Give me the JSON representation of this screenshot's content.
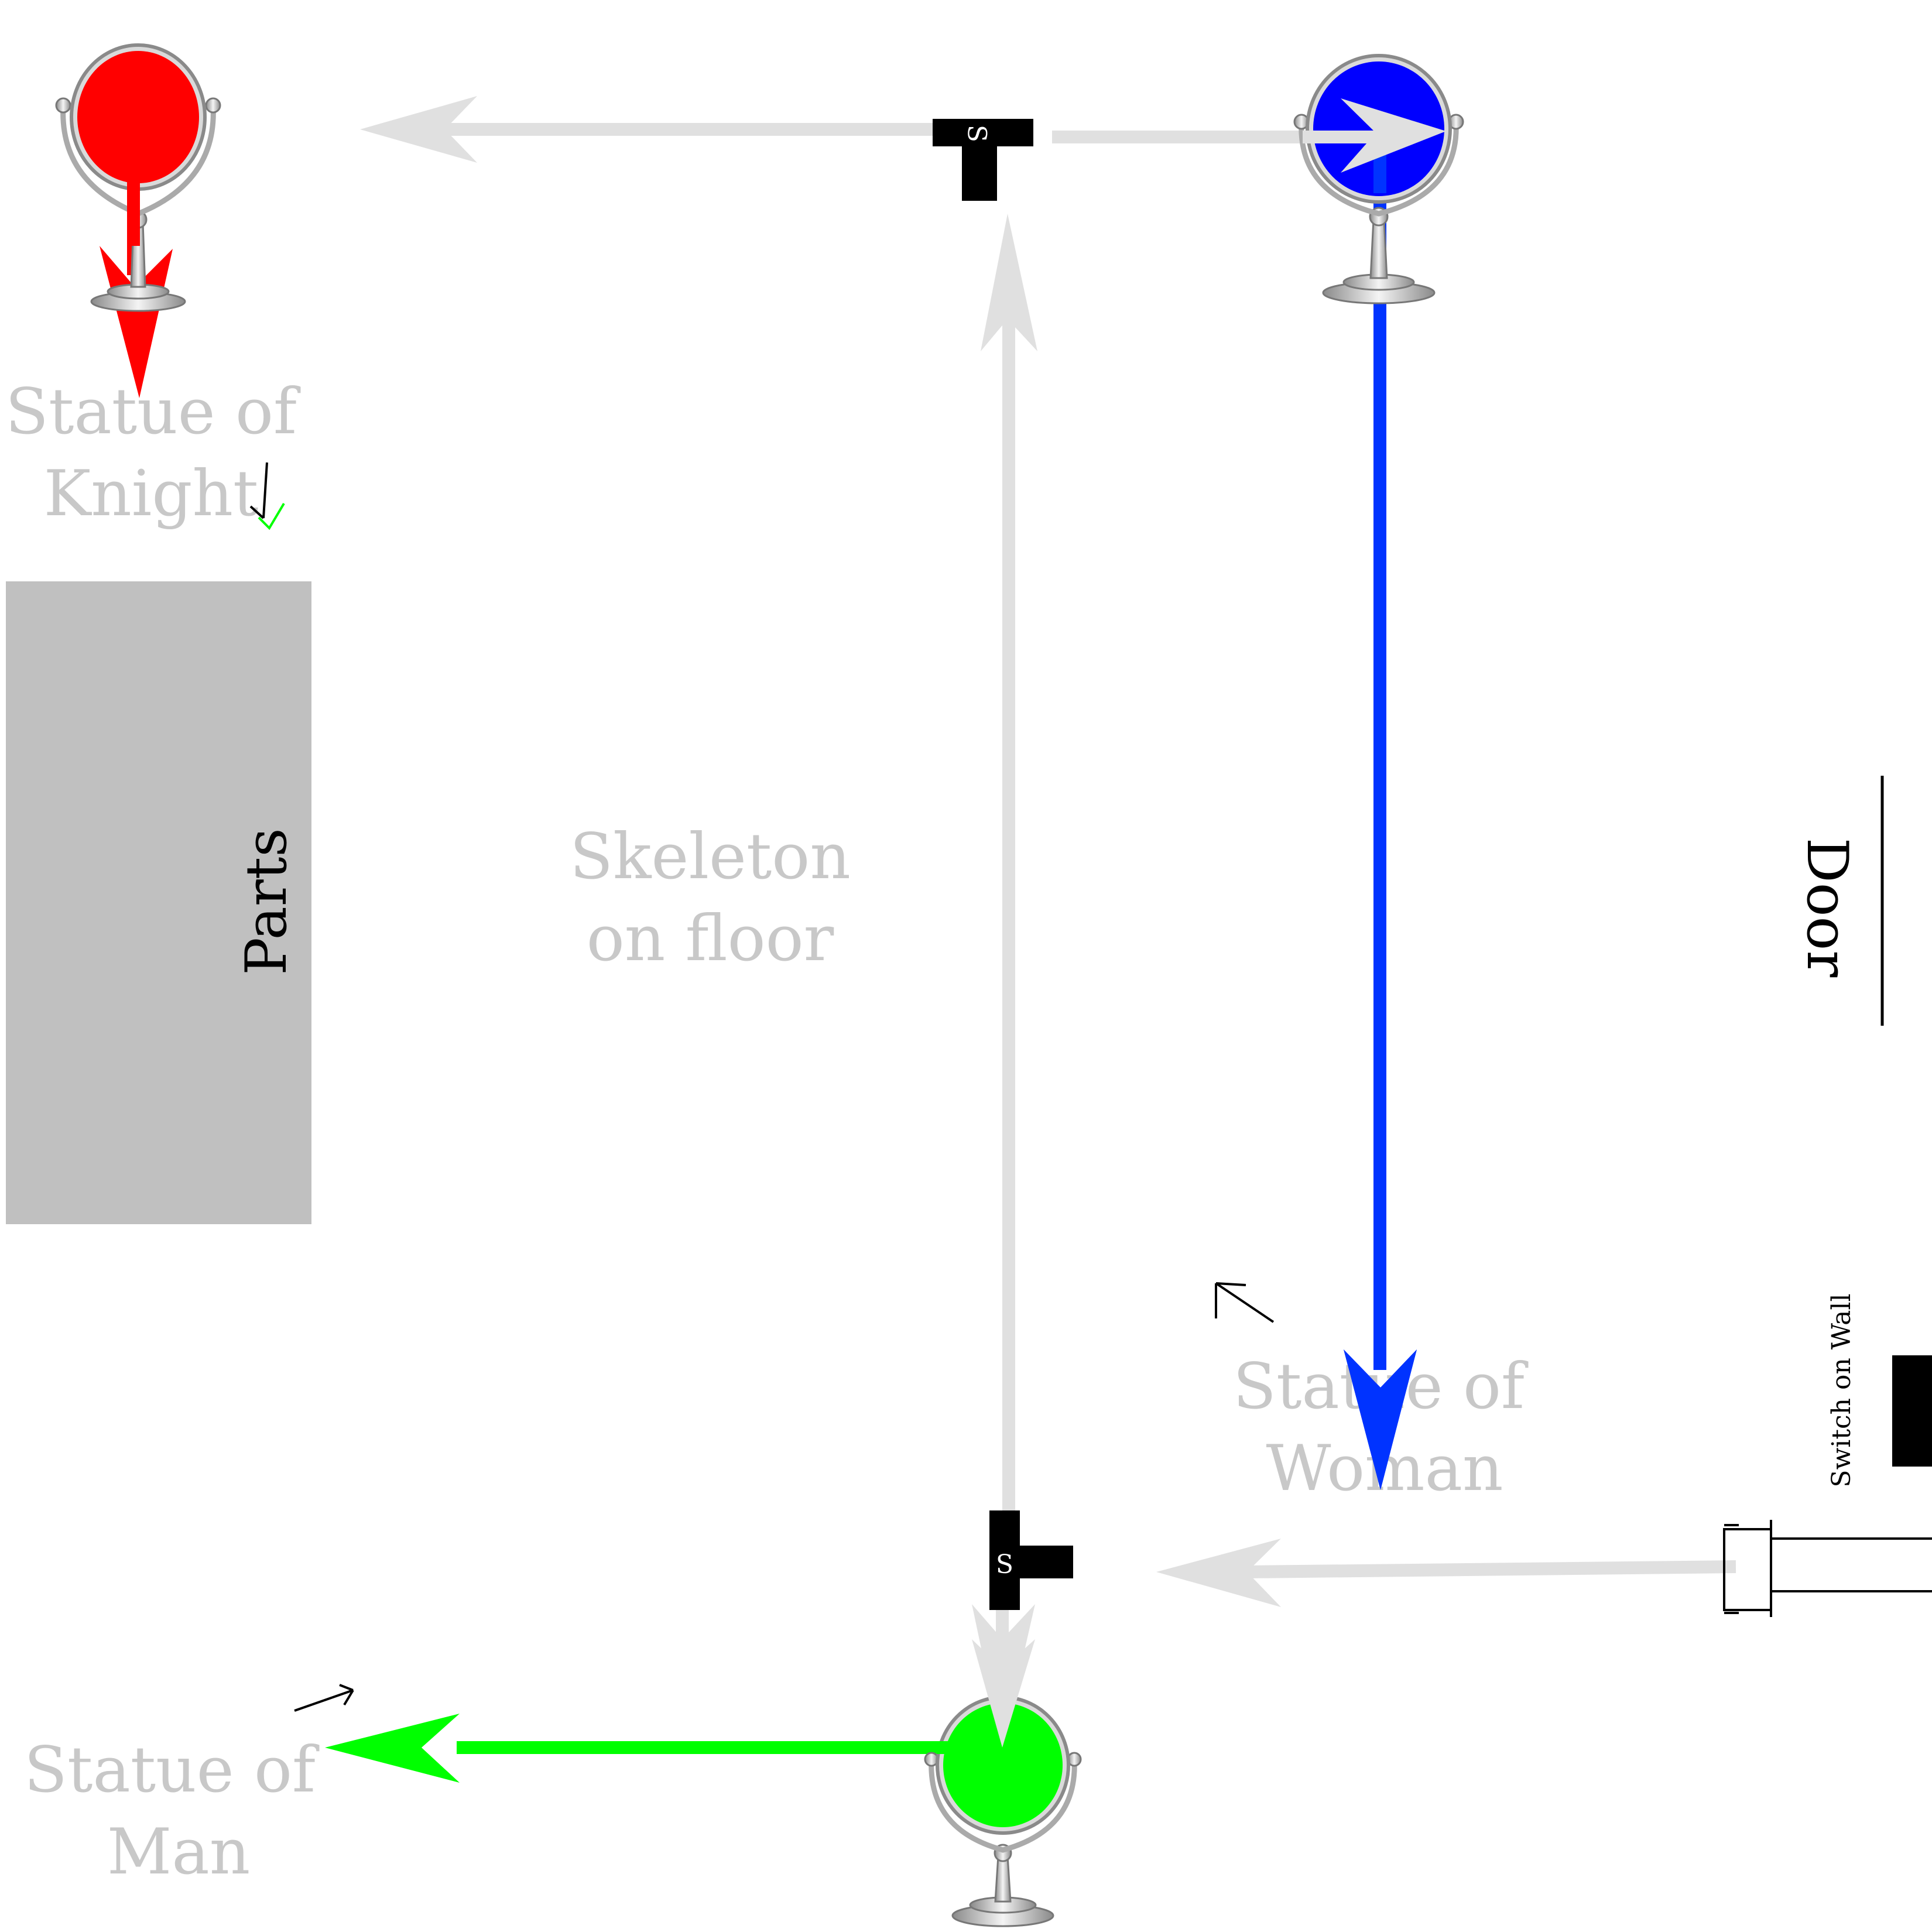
{
  "labels": {
    "statue_knight": [
      "Statue of",
      "Knight"
    ],
    "skeleton": [
      "Skeleton",
      "on floor"
    ],
    "statue_woman": [
      "Statue of",
      "Woman"
    ],
    "statue_man": [
      "Statue of",
      "Man"
    ],
    "parts": "Parts",
    "door": "Door",
    "switch_on_wall": "Switch on Wall",
    "splitter_glyph": "S"
  },
  "colors": {
    "beam_grey": "#e0e0e0",
    "label_grey": "#c8c8c8",
    "red": "#ff0000",
    "blue": "#0000ff",
    "blue_beam": "#0033ff",
    "green": "#00ff00",
    "parts_box": "#c0c0c0",
    "black": "#000000",
    "chrome": "#b8b8b8"
  },
  "icons": {
    "mirror": "mirror-on-stand-icon",
    "splitter": "t-splitter-icon",
    "emitter": "light-emitter-icon",
    "direction_hint": "thin-arrow-icon",
    "check": "checkmark-icon"
  }
}
